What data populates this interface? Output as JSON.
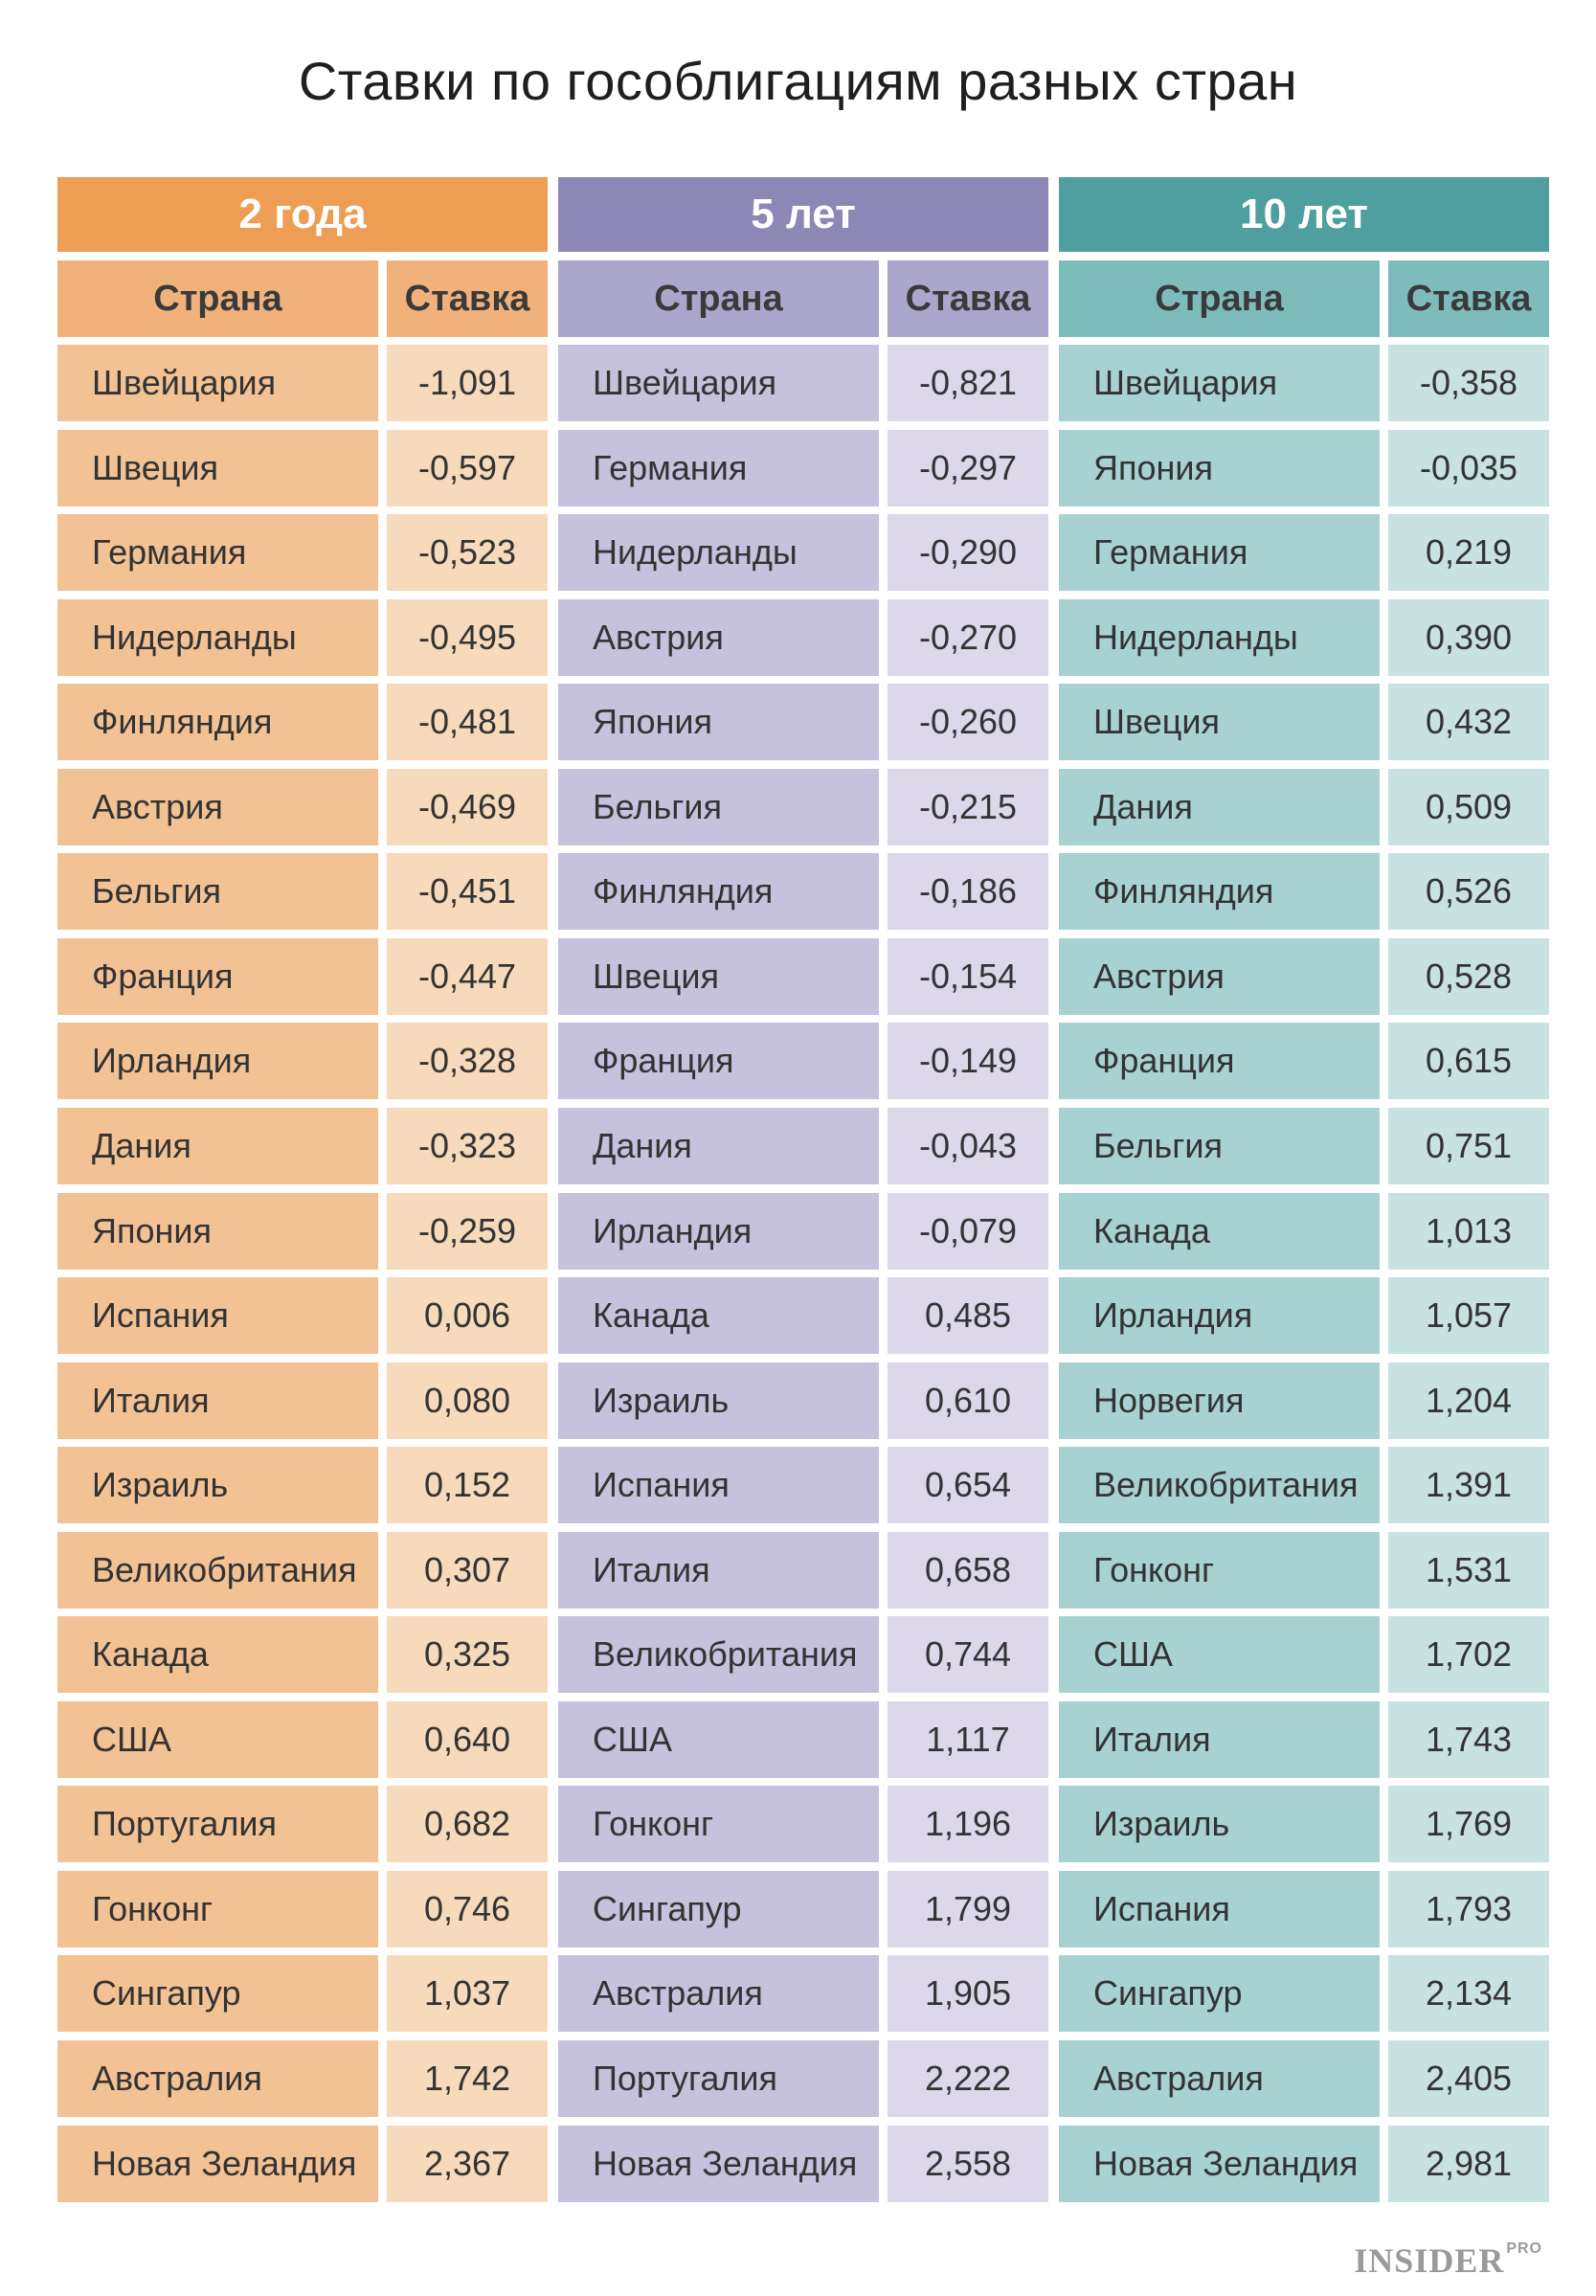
{
  "title": "Ставки по гособлигациям разных стран",
  "logo": {
    "main": "INSIDER",
    "sup": "PRO"
  },
  "chart_data": {
    "type": "table",
    "title": "Ставки по гособлигациям разных стран",
    "tables": [
      {
        "name": "2 года",
        "header_color": "#ee9d54",
        "col_header_color": "#f0b27a",
        "country_color": "#f2c294",
        "rate_color": "#f7d9bb",
        "columns": [
          "Страна",
          "Ставка"
        ],
        "rows": [
          [
            "Швейцария",
            "-1,091"
          ],
          [
            "Швеция",
            "-0,597"
          ],
          [
            "Германия",
            "-0,523"
          ],
          [
            "Нидерланды",
            "-0,495"
          ],
          [
            "Финляндия",
            "-0,481"
          ],
          [
            "Австрия",
            "-0,469"
          ],
          [
            "Бельгия",
            "-0,451"
          ],
          [
            "Франция",
            "-0,447"
          ],
          [
            "Ирландия",
            "-0,328"
          ],
          [
            "Дания",
            "-0,323"
          ],
          [
            "Япония",
            "-0,259"
          ],
          [
            "Испания",
            "0,006"
          ],
          [
            "Италия",
            "0,080"
          ],
          [
            "Израиль",
            "0,152"
          ],
          [
            "Великобритания",
            "0,307"
          ],
          [
            "Канада",
            "0,325"
          ],
          [
            "США",
            "0,640"
          ],
          [
            "Португалия",
            "0,682"
          ],
          [
            "Гонконг",
            "0,746"
          ],
          [
            "Сингапур",
            "1,037"
          ],
          [
            "Австралия",
            "1,742"
          ],
          [
            "Новая Зеландия",
            "2,367"
          ]
        ]
      },
      {
        "name": "5 лет",
        "header_color": "#8c87b4",
        "col_header_color": "#aba6cb",
        "country_color": "#c6c1dc",
        "rate_color": "#dcd8ea",
        "columns": [
          "Страна",
          "Ставка"
        ],
        "rows": [
          [
            "Швейцария",
            "-0,821"
          ],
          [
            "Германия",
            "-0,297"
          ],
          [
            "Нидерланды",
            "-0,290"
          ],
          [
            "Австрия",
            "-0,270"
          ],
          [
            "Япония",
            "-0,260"
          ],
          [
            "Бельгия",
            "-0,215"
          ],
          [
            "Финляндия",
            "-0,186"
          ],
          [
            "Швеция",
            "-0,154"
          ],
          [
            "Франция",
            "-0,149"
          ],
          [
            "Дания",
            "-0,043"
          ],
          [
            "Ирландия",
            "-0,079"
          ],
          [
            "Канада",
            "0,485"
          ],
          [
            "Израиль",
            "0,610"
          ],
          [
            "Испания",
            "0,654"
          ],
          [
            "Италия",
            "0,658"
          ],
          [
            "Великобритания",
            "0,744"
          ],
          [
            "США",
            "1,117"
          ],
          [
            "Гонконг",
            "1,196"
          ],
          [
            "Сингапур",
            "1,799"
          ],
          [
            "Австралия",
            "1,905"
          ],
          [
            "Португалия",
            "2,222"
          ],
          [
            "Новая Зеландия",
            "2,558"
          ]
        ]
      },
      {
        "name": "10 лет",
        "header_color": "#4f9ea0",
        "col_header_color": "#7ebcbc",
        "country_color": "#a8d2d1",
        "rate_color": "#c8e2e2",
        "columns": [
          "Страна",
          "Ставка"
        ],
        "rows": [
          [
            "Швейцария",
            "-0,358"
          ],
          [
            "Япония",
            "-0,035"
          ],
          [
            "Германия",
            "0,219"
          ],
          [
            "Нидерланды",
            "0,390"
          ],
          [
            "Швеция",
            "0,432"
          ],
          [
            "Дания",
            "0,509"
          ],
          [
            "Финляндия",
            "0,526"
          ],
          [
            "Австрия",
            "0,528"
          ],
          [
            "Франция",
            "0,615"
          ],
          [
            "Бельгия",
            "0,751"
          ],
          [
            "Канада",
            "1,013"
          ],
          [
            "Ирландия",
            "1,057"
          ],
          [
            "Норвегия",
            "1,204"
          ],
          [
            "Великобритания",
            "1,391"
          ],
          [
            "Гонконг",
            "1,531"
          ],
          [
            "США",
            "1,702"
          ],
          [
            "Италия",
            "1,743"
          ],
          [
            "Израиль",
            "1,769"
          ],
          [
            "Испания",
            "1,793"
          ],
          [
            "Сингапур",
            "2,134"
          ],
          [
            "Австралия",
            "2,405"
          ],
          [
            "Новая Зеландия",
            "2,981"
          ]
        ]
      }
    ]
  }
}
